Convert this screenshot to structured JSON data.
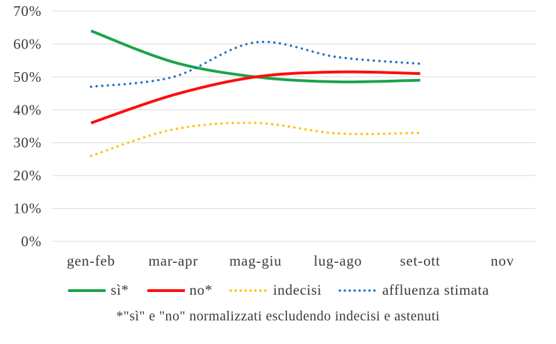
{
  "chart_data": {
    "type": "line",
    "title": "",
    "xlabel": "",
    "ylabel": "",
    "categories": [
      "gen-feb",
      "mar-apr",
      "mag-giu",
      "lug-ago",
      "set-ott",
      "nov"
    ],
    "series": [
      {
        "name": "sì*",
        "color": "#1CA34B",
        "style": "solid",
        "values": [
          64,
          54.5,
          50,
          48.5,
          49,
          null
        ]
      },
      {
        "name": "no*",
        "color": "#FE0D0D",
        "style": "solid",
        "values": [
          36,
          44.5,
          50,
          51.5,
          51,
          null
        ]
      },
      {
        "name": "indecisi",
        "color": "#FFC000",
        "style": "dotted",
        "values": [
          26,
          34,
          36,
          32.8,
          33,
          null
        ]
      },
      {
        "name": "affluenza stimata",
        "color": "#1F75C4",
        "style": "dotted",
        "values": [
          47,
          50,
          60.5,
          56,
          54,
          null
        ]
      }
    ],
    "ylim": [
      0,
      70
    ],
    "ytick_step": 10,
    "ytick_suffix": "%",
    "grid": true,
    "legend_position": "bottom",
    "footnote": "*\"sì\" e \"no\" normalizzati escludendo indecisi e astenuti"
  },
  "colors": {
    "gridline": "#D9D9D9",
    "text": "#3B3B3B",
    "background": "#FFFFFF"
  }
}
